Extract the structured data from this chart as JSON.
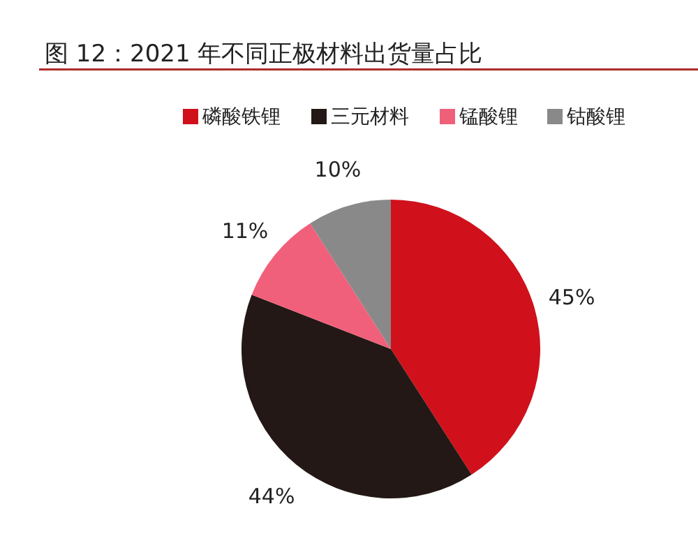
{
  "chart_data": {
    "type": "pie",
    "title": "图 12：2021 年不同正极材料出货量占比",
    "categories": [
      "磷酸铁锂",
      "三元材料",
      "锰酸锂",
      "钴酸锂"
    ],
    "values": [
      45,
      44,
      11,
      10
    ],
    "colors": [
      "#d0111b",
      "#231815",
      "#f0607a",
      "#898989"
    ],
    "value_labels": [
      "45%",
      "44%",
      "11%",
      "10%"
    ],
    "legend": "top"
  }
}
